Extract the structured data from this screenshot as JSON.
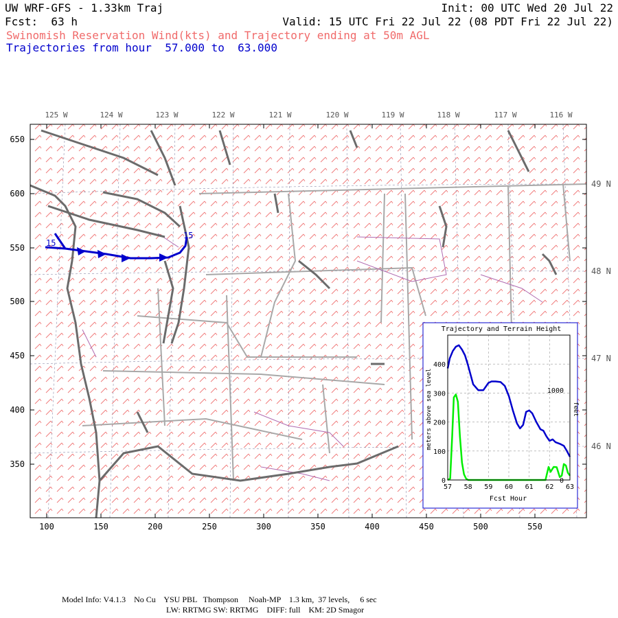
{
  "header": {
    "model_title": "UW WRF-GFS - 1.33km Traj",
    "init": "Init: 00 UTC Wed 20 Jul 22",
    "fcst": "Fcst:  63 h",
    "valid": "Valid: 15 UTC Fri 22 Jul 22 (08 PDT Fri 22 Jul 22)",
    "product": "Swinomish Reservation Wind(kts) and Trajectory ending at 50m AGL",
    "traj_hours": "Trajectories from hour  57.000 to  63.000"
  },
  "colors": {
    "header_black": "#000000",
    "product_red": "#f06a6a",
    "trajectory_blue": "#0000cc",
    "wind_barbs": "#f07878",
    "coast": "#6b6b6b",
    "borders": "#a8a8a8",
    "rivers": "#b06ab0",
    "terrain_green": "#00ee00"
  },
  "map": {
    "lon_labels": [
      "125 W",
      "124 W",
      "123 W",
      "122 W",
      "121 W",
      "120 W",
      "119 W",
      "118 W",
      "117 W",
      "116 W"
    ],
    "lat_labels": [
      "49 N",
      "48 N",
      "47 N",
      "46 N"
    ],
    "y_ticks": [
      "650",
      "600",
      "550",
      "500",
      "450",
      "400",
      "350"
    ],
    "x_ticks": [
      "100",
      "150",
      "200",
      "250",
      "300",
      "350",
      "400",
      "450",
      "500",
      "550"
    ],
    "trajectory_start_label": "15",
    "trajectory_end_label": "15"
  },
  "inset": {
    "title": "Trajectory and Terrain Height",
    "ylabel": "meters above sea level",
    "y2label": "feet",
    "y2_ticks": [
      "1000",
      "0"
    ],
    "xlabel": "Fcst Hour"
  },
  "chart_data": {
    "type": "line",
    "title": "Trajectory and Terrain Height",
    "xlabel": "Fcst Hour",
    "ylabel": "meters above sea level",
    "y2label": "feet",
    "xlim": [
      57,
      63
    ],
    "ylim": [
      0,
      500
    ],
    "x_ticks": [
      "57",
      "58",
      "59",
      "60",
      "61",
      "62",
      "63"
    ],
    "y_ticks": [
      "0",
      "100",
      "200",
      "300",
      "400"
    ],
    "grid": true,
    "series": [
      {
        "name": "trajectory height",
        "color": "#0000cc",
        "x": [
          57.0,
          57.1,
          57.25,
          57.4,
          57.55,
          57.7,
          57.85,
          58.0,
          58.25,
          58.5,
          58.75,
          59.0,
          59.15,
          59.35,
          59.6,
          59.8,
          60.0,
          60.2,
          60.4,
          60.55,
          60.7,
          60.85,
          61.0,
          61.15,
          61.35,
          61.55,
          61.7,
          61.85,
          62.0,
          62.15,
          62.3,
          62.5,
          62.7,
          62.85,
          63.0
        ],
        "y": [
          385,
          420,
          445,
          460,
          465,
          450,
          430,
          395,
          330,
          310,
          310,
          335,
          340,
          340,
          338,
          325,
          290,
          240,
          195,
          178,
          190,
          235,
          240,
          230,
          200,
          175,
          170,
          150,
          135,
          140,
          130,
          125,
          118,
          100,
          80
        ]
      },
      {
        "name": "terrain height",
        "color": "#00ee00",
        "x": [
          57.0,
          57.12,
          57.22,
          57.3,
          57.4,
          57.5,
          57.6,
          57.7,
          57.8,
          57.9,
          58.0,
          58.5,
          59.0,
          60.0,
          61.0,
          61.8,
          61.95,
          62.05,
          62.2,
          62.35,
          62.5,
          62.6,
          62.7,
          62.8,
          62.9,
          63.0
        ],
        "y": [
          0,
          5,
          150,
          285,
          295,
          270,
          150,
          60,
          20,
          5,
          0,
          0,
          0,
          0,
          0,
          0,
          45,
          28,
          45,
          44,
          10,
          15,
          55,
          50,
          25,
          15
        ]
      }
    ]
  },
  "footer": {
    "line1": "Model Info: V4.1.3    No Cu    YSU PBL   Thompson     Noah-MP    1.3 km,  37 levels,     6 sec",
    "line2": "LW: RRTMG SW: RRTMG    DIFF: full    KM: 2D Smagor"
  }
}
